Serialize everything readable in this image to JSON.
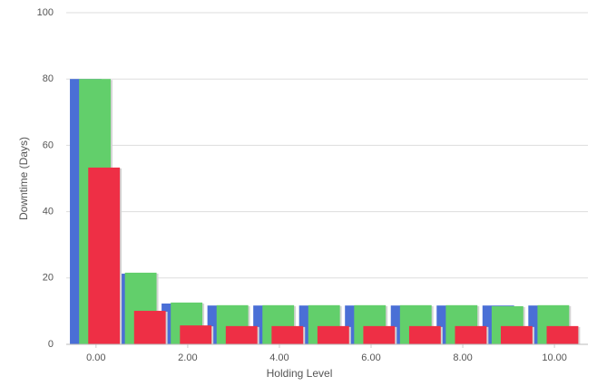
{
  "chart_data": {
    "type": "bar",
    "x": [
      0,
      1,
      2,
      3,
      4,
      5,
      6,
      7,
      8,
      9,
      10
    ],
    "series": [
      {
        "color": "#4a6fd6",
        "values": [
          80,
          21.3,
          12.3,
          11.7,
          11.7,
          11.7,
          11.7,
          11.7,
          11.7,
          11.7,
          11.7
        ]
      },
      {
        "color": "#62cf6b",
        "values": [
          80,
          21.6,
          12.6,
          11.8,
          11.8,
          11.8,
          11.8,
          11.8,
          11.8,
          11.5,
          11.8
        ]
      },
      {
        "color": "#ee2f45",
        "values": [
          53.3,
          10.1,
          5.7,
          5.5,
          5.5,
          5.5,
          5.5,
          5.5,
          5.5,
          5.5,
          5.5
        ]
      }
    ],
    "xlabel": "Holding Level",
    "ylabel": "Downtime (Days)",
    "xlim": [
      -0.65,
      10.73
    ],
    "ylim": [
      0,
      100
    ],
    "xticks": [
      {
        "value": 0,
        "label": "0.00"
      },
      {
        "value": 2,
        "label": "2.00"
      },
      {
        "value": 4,
        "label": "4.00"
      },
      {
        "value": 6,
        "label": "6.00"
      },
      {
        "value": 8,
        "label": "8.00"
      },
      {
        "value": 10,
        "label": "10.00"
      }
    ],
    "yticks": [
      0,
      20,
      40,
      60,
      80,
      100
    ],
    "grid": true
  }
}
